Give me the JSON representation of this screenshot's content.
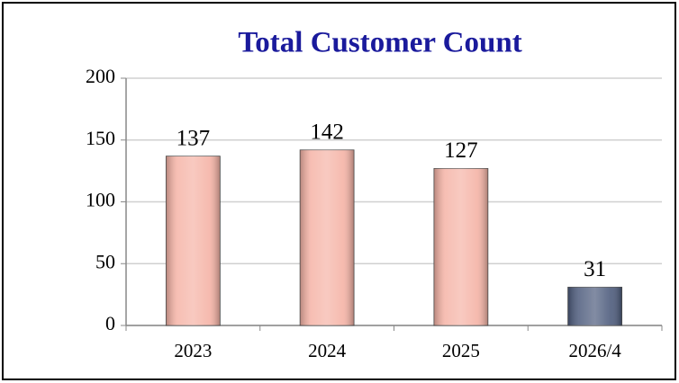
{
  "chart_data": {
    "type": "bar",
    "title": "Total Customer Count",
    "categories": [
      "2023",
      "2024",
      "2025",
      "2026/4"
    ],
    "values": [
      137,
      142,
      127,
      31
    ],
    "colors": [
      "#f5b3a6",
      "#f5b3a6",
      "#f5b3a6",
      "#4d5b7c"
    ],
    "ylim": [
      0,
      200
    ],
    "yticks": [
      0,
      50,
      100,
      150,
      200
    ],
    "grid": true
  }
}
